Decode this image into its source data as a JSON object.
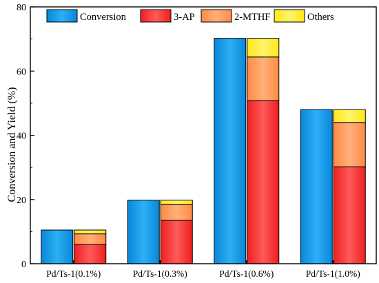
{
  "chart_data": {
    "type": "bar",
    "subtype": "grouped-stacked",
    "title": "",
    "xlabel": "",
    "ylabel": "Conversion and Yield (%)",
    "ylim": [
      0,
      80
    ],
    "yticks": [
      0,
      20,
      40,
      60,
      80
    ],
    "grid": false,
    "legend_position": "top",
    "categories": [
      "Pd/Ts-1(0.1%)",
      "Pd/Ts-1(0.3%)",
      "Pd/Ts-1(0.6%)",
      "Pd/Ts-1(1.0%)"
    ],
    "conversion": {
      "name": "Conversion",
      "color": "#1a9be8",
      "values": [
        10.5,
        19.8,
        70.2,
        48.0
      ]
    },
    "yield_stack": [
      {
        "name": "3-AP",
        "color": "#ff3a3a",
        "values": [
          6.0,
          13.5,
          50.8,
          30.2
        ]
      },
      {
        "name": "2-MTHF",
        "color": "#ff9b5e",
        "values": [
          3.3,
          5.0,
          13.6,
          13.8
        ]
      },
      {
        "name": "Others",
        "color": "#ffee33",
        "values": [
          1.2,
          1.3,
          5.8,
          4.0
        ]
      }
    ],
    "legend": [
      "Conversion",
      "3-AP",
      "2-MTHF",
      "Others"
    ]
  }
}
